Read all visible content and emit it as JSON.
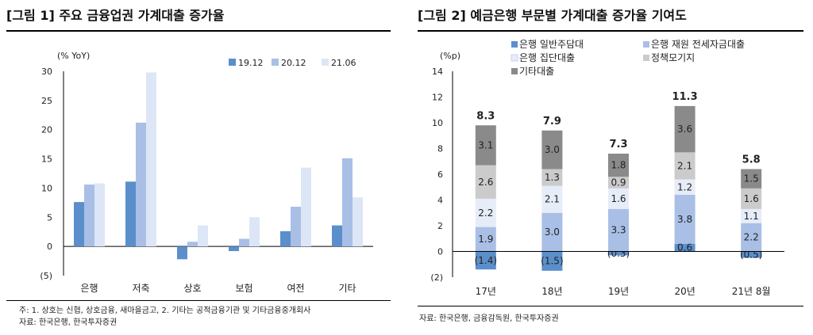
{
  "figure1": {
    "title": "[그림 1] 주요 금융업권 가계대출 증가율",
    "notes": [
      "주: 1. 상호는 신협, 상호금융, 새마을금고, 2. 기타는 공적금융기관 및 기타금융중개회사",
      "자료: 한국은행, 한국투자증권"
    ]
  },
  "figure2": {
    "title": "[그림 2] 예금은행 부문별 가계대출 증가율 기여도",
    "notes": [
      "자료: 한국은행, 금융감독원, 한국투자증권"
    ]
  },
  "colors": {
    "s1912": "#5b8fcc",
    "s2012": "#a9bfe6",
    "s2106": "#dde6f6",
    "general": "#5b8fcc",
    "jeonse": "#a9bfe6",
    "group": "#e6ecf8",
    "policy": "#cbcbcb",
    "other": "#8a8a8a"
  },
  "chart_data": [
    {
      "type": "bar",
      "title": "[그림 1] 주요 금융업권 가계대출 증가율",
      "ylabel": "(% YoY)",
      "ylim": [
        -5,
        30
      ],
      "yticks": [
        -5,
        0,
        5,
        10,
        15,
        20,
        25,
        30
      ],
      "ytick_labels": [
        "(5)",
        "0",
        "5",
        "10",
        "15",
        "20",
        "25",
        "30"
      ],
      "categories": [
        "은행",
        "저축",
        "상호",
        "보험",
        "여전",
        "기타"
      ],
      "series": [
        {
          "name": "19.12",
          "values": [
            7.6,
            11.1,
            -2.2,
            -0.8,
            2.6,
            3.6
          ]
        },
        {
          "name": "20.12",
          "values": [
            10.6,
            21.2,
            0.8,
            1.3,
            6.8,
            15.1
          ]
        },
        {
          "name": "21.06",
          "values": [
            10.8,
            29.8,
            3.6,
            5.0,
            13.5,
            8.4
          ]
        }
      ],
      "legend_position": "top-right"
    },
    {
      "type": "bar",
      "stacked": true,
      "title": "[그림 2] 예금은행 부문별 가계대출 증가율 기여도",
      "ylabel": "(%p)",
      "ylim": [
        -2,
        14
      ],
      "yticks": [
        -2,
        0,
        2,
        4,
        6,
        8,
        10,
        12,
        14
      ],
      "ytick_labels": [
        "(2)",
        "0",
        "2",
        "4",
        "6",
        "8",
        "10",
        "12",
        "14"
      ],
      "categories": [
        "17년",
        "18년",
        "19년",
        "20년",
        "21년 8월"
      ],
      "series": [
        {
          "name": "은행 일반주담대",
          "values": [
            -1.4,
            -1.5,
            -0.3,
            0.6,
            -0.5
          ],
          "labels": [
            "(1.4)",
            "(1.5)",
            "(0.3)",
            "0.6",
            "(0.5)"
          ]
        },
        {
          "name": "은행 재원 전세자금대출",
          "values": [
            1.9,
            3.0,
            3.3,
            3.8,
            2.2
          ],
          "labels": [
            "1.9",
            "3.0",
            "3.3",
            "3.8",
            "2.2"
          ]
        },
        {
          "name": "은행 집단대출",
          "values": [
            2.2,
            2.1,
            1.6,
            1.2,
            1.1
          ],
          "labels": [
            "2.2",
            "2.1",
            "1.6",
            "1.2",
            "1.1"
          ]
        },
        {
          "name": "정책모기지",
          "values": [
            2.6,
            1.3,
            0.9,
            2.1,
            1.6
          ],
          "labels": [
            "2.6",
            "1.3",
            "0.9",
            "2.1",
            "1.6"
          ]
        },
        {
          "name": "기타대출",
          "values": [
            3.1,
            3.0,
            1.8,
            3.6,
            1.5
          ],
          "labels": [
            "3.1",
            "3.0",
            "1.8",
            "3.6",
            "1.5"
          ]
        }
      ],
      "totals": [
        "8.3",
        "7.9",
        "7.3",
        "11.3",
        "5.8"
      ],
      "legend_position": "top-left"
    }
  ]
}
